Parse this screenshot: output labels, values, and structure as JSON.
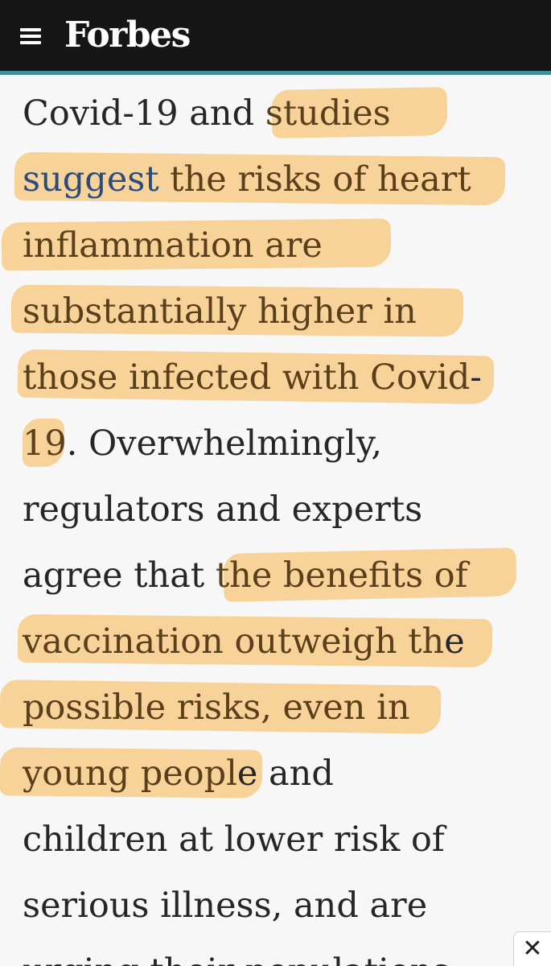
{
  "header": {
    "menu_icon": "hamburger-menu-icon",
    "logo_text": "Forbes"
  },
  "article": {
    "lines": [
      {
        "pre": "Covid-19 and ",
        "hl": "studies",
        "post": ""
      },
      {
        "pre": "",
        "link": "suggest",
        "hl": " the risks of heart",
        "post": ""
      },
      {
        "pre": "",
        "hl": "inflammation are",
        "post": ""
      },
      {
        "pre": "",
        "hl": "substantially higher in",
        "post": ""
      },
      {
        "pre": "",
        "hl": "those infected with Covid",
        "post": "-"
      },
      {
        "pre": "",
        "hl": "19",
        "post": ". Overwhelmingly,"
      },
      {
        "pre": "regulators and experts",
        "hl": "",
        "post": ""
      },
      {
        "pre": "agree that ",
        "hl": "the benefits of",
        "post": ""
      },
      {
        "pre": "",
        "hl": "vaccination outweigh th",
        "post": "e"
      },
      {
        "pre": "",
        "hl": "possible risks, even in",
        "post": ""
      },
      {
        "pre": "",
        "hl": "young peopl",
        "post": "e and"
      },
      {
        "pre": "children at lower risk of",
        "hl": "",
        "post": ""
      },
      {
        "pre": "serious illness, and are",
        "hl": "",
        "post": ""
      },
      {
        "pre": "urging their populations",
        "hl": "",
        "post": ""
      }
    ]
  },
  "overlay": {
    "close_label": "✕"
  },
  "colors": {
    "header_bg": "#161616",
    "header_rule": "#3f8f9a",
    "highlight": "#f7bb5f",
    "link": "#2b4a7e"
  }
}
